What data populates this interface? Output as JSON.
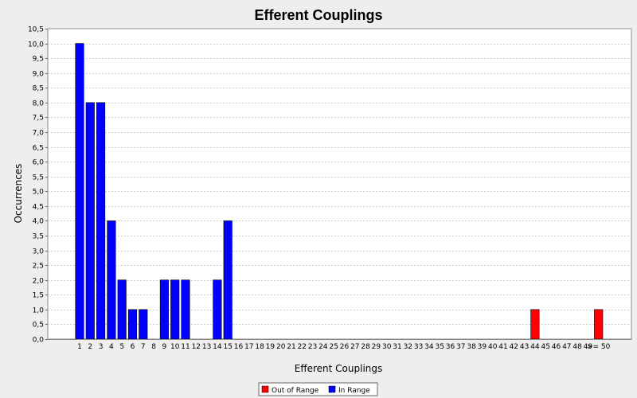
{
  "chart_data": {
    "type": "bar",
    "title": "Efferent Couplings",
    "xlabel": "Efferent Couplings",
    "ylabel": "Occurrences",
    "ylim": [
      0,
      10.5
    ],
    "ytick_step": 0.5,
    "ytick_labels": [
      "0,0",
      "0,5",
      "1,0",
      "1,5",
      "2,0",
      "2,5",
      "3,0",
      "3,5",
      "4,0",
      "4,5",
      "5,0",
      "5,5",
      "6,0",
      "6,5",
      "7,0",
      "7,5",
      "8,0",
      "8,5",
      "9,0",
      "9,5",
      "10,0",
      "10,5"
    ],
    "grid": true,
    "legend_position": "bottom-center",
    "categories": [
      "1",
      "2",
      "3",
      "4",
      "5",
      "6",
      "7",
      "8",
      "9",
      "10",
      "11",
      "12",
      "13",
      "14",
      "15",
      "16",
      "17",
      "18",
      "19",
      "20",
      "21",
      "22",
      "23",
      "24",
      "25",
      "26",
      "27",
      "28",
      "29",
      "30",
      "31",
      "32",
      "33",
      "34",
      "35",
      "36",
      "37",
      "38",
      "39",
      "40",
      "41",
      "42",
      "43",
      "44",
      "45",
      "46",
      "47",
      "48",
      "49",
      ">= 50"
    ],
    "series": [
      {
        "name": "Out of Range",
        "color": "#ff0000",
        "values": [
          0,
          0,
          0,
          0,
          0,
          0,
          0,
          0,
          0,
          0,
          0,
          0,
          0,
          0,
          0,
          0,
          0,
          0,
          0,
          0,
          0,
          0,
          0,
          0,
          0,
          0,
          0,
          0,
          0,
          0,
          0,
          0,
          0,
          0,
          0,
          0,
          0,
          0,
          0,
          0,
          0,
          0,
          0,
          1,
          0,
          0,
          0,
          0,
          0,
          1
        ]
      },
      {
        "name": "In Range",
        "color": "#0000ff",
        "values": [
          10,
          8,
          8,
          4,
          2,
          1,
          1,
          0,
          2,
          2,
          2,
          0,
          0,
          2,
          4,
          0,
          0,
          0,
          0,
          0,
          0,
          0,
          0,
          0,
          0,
          0,
          0,
          0,
          0,
          0,
          0,
          0,
          0,
          0,
          0,
          0,
          0,
          0,
          0,
          0,
          0,
          0,
          0,
          0,
          0,
          0,
          0,
          0,
          0,
          0
        ]
      }
    ]
  }
}
